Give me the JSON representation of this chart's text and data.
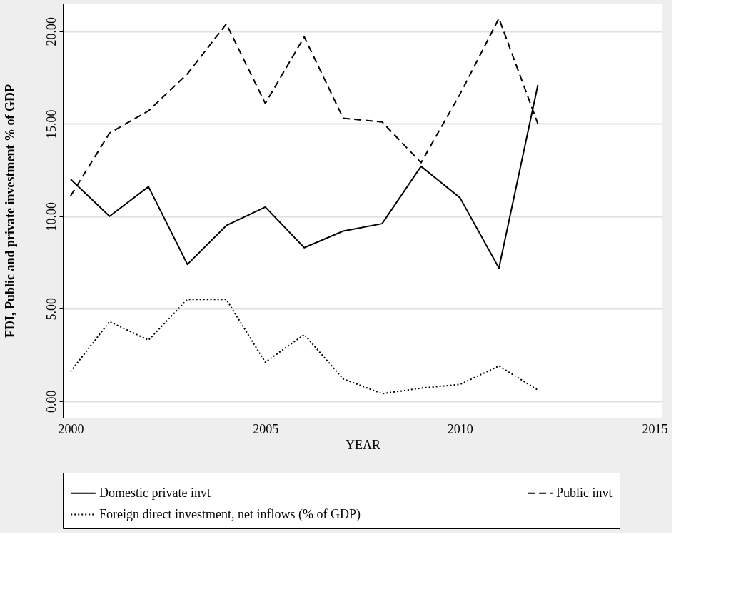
{
  "chart_data": {
    "type": "line",
    "xlabel": "YEAR",
    "ylabel": "FDI, Public and private investment % of GDP",
    "x": [
      2000,
      2001,
      2002,
      2003,
      2004,
      2005,
      2006,
      2007,
      2008,
      2009,
      2010,
      2011,
      2012
    ],
    "series": [
      {
        "name": "Domestic private invt",
        "color": "#000000",
        "line_style": "solid",
        "values": [
          12.0,
          10.0,
          11.6,
          7.4,
          9.5,
          10.5,
          8.3,
          9.2,
          9.6,
          12.7,
          11.0,
          7.2,
          17.1
        ]
      },
      {
        "name": "Public invt",
        "color": "#000000",
        "line_style": "dashed",
        "values": [
          11.1,
          14.5,
          15.7,
          17.7,
          20.4,
          16.1,
          19.7,
          15.3,
          15.1,
          12.9,
          16.6,
          20.7,
          15.0
        ]
      },
      {
        "name": "Foreign direct investment, net inflows (% of GDP)",
        "color": "#000000",
        "line_style": "dotted",
        "values": [
          1.6,
          4.3,
          3.3,
          5.5,
          5.5,
          2.1,
          3.6,
          1.2,
          0.4,
          0.7,
          0.9,
          1.9,
          0.6
        ]
      }
    ],
    "xlim": [
      1999.8,
      2015.2
    ],
    "xticks": [
      2000,
      2005,
      2010,
      2015
    ],
    "ylim": [
      -0.9,
      21.5
    ],
    "yticks": [
      {
        "value": 0,
        "label": "0.00"
      },
      {
        "value": 5,
        "label": "5.00"
      },
      {
        "value": 10,
        "label": "10.00"
      },
      {
        "value": 15,
        "label": "15.00"
      },
      {
        "value": 20,
        "label": "20.00"
      }
    ],
    "grid": "y",
    "legend": "bottom",
    "marker": "none"
  }
}
